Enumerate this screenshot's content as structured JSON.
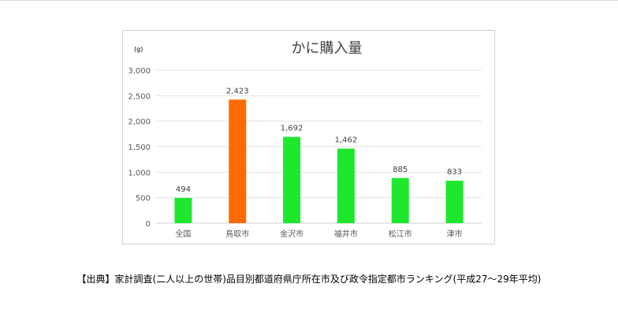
{
  "chart_data": {
    "type": "bar",
    "title": "かに購入量",
    "unit_label": "(g)",
    "categories": [
      "全国",
      "鳥取市",
      "金沢市",
      "福井市",
      "松江市",
      "津市"
    ],
    "values": [
      494,
      2423,
      1692,
      1462,
      885,
      833
    ],
    "value_labels": [
      "494",
      "2,423",
      "1,692",
      "1,462",
      "885",
      "833"
    ],
    "yticks": [
      0,
      500,
      1000,
      1500,
      2000,
      2500,
      3000
    ],
    "ytick_labels": [
      "0",
      "500",
      "1,000",
      "1,500",
      "2,000",
      "2,500",
      "3,000"
    ],
    "ylim": [
      0,
      3000
    ],
    "grid": true,
    "legend": "none",
    "colors": {
      "default_bar": "#1ee82e",
      "highlight_bar": "#ff6a00",
      "gridline": "#e3e3e3",
      "axis_text": "#595959",
      "title_text": "#404040"
    },
    "highlight_index": 1
  },
  "source_note": "【出典】家計調査(二人以上の世帯)品目別都道府県庁所在市及び政令指定都市ランキング(平成27〜29年平均)"
}
